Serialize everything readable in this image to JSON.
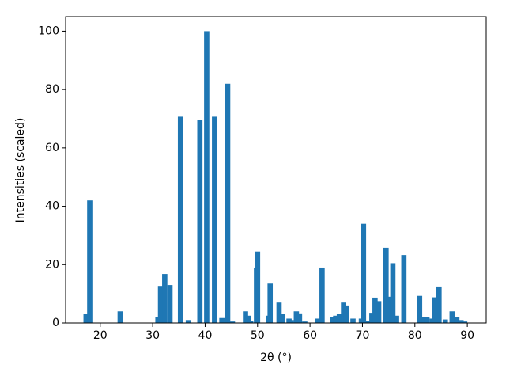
{
  "chart_data": {
    "type": "bar",
    "xlabel": "2θ (°)",
    "ylabel": "Intensities (scaled)",
    "color": "#1f77b4",
    "x": [
      17.3,
      18,
      23.8,
      31,
      31.5,
      32.3,
      33.3,
      35.3,
      36.8,
      39,
      40.3,
      41.8,
      43.2,
      44.3,
      45.2,
      47.7,
      48.2,
      48.7,
      49.8,
      50,
      52.1,
      52.4,
      54.1,
      54.7,
      56,
      56.4,
      57.4,
      58,
      59,
      61.5,
      62.3,
      64.3,
      64.9,
      65.6,
      66.4,
      66.9,
      68.2,
      69.8,
      70.2,
      71,
      71.8,
      72.4,
      73.1,
      74.5,
      75,
      75.8,
      76.5,
      77.9,
      80.9,
      81.8,
      82.3,
      83.3,
      83.8,
      84.6,
      85.8,
      87.1,
      88,
      88.8,
      89.5
    ],
    "values": [
      3,
      42,
      4,
      2,
      12.7,
      16.8,
      13,
      70.7,
      1,
      69.5,
      100,
      70.7,
      1.7,
      82,
      0.5,
      4,
      2.5,
      0.8,
      19,
      24.5,
      2.5,
      13.5,
      7,
      3,
      1.5,
      1,
      4,
      3.3,
      0.5,
      1.5,
      19,
      2,
      2.5,
      3,
      7,
      6,
      1.5,
      1.5,
      34,
      0.8,
      3.5,
      8.7,
      7.5,
      25.8,
      9,
      20.5,
      2.5,
      23.3,
      9.3,
      2,
      2,
      1.5,
      8.8,
      12.5,
      1.2,
      4,
      2,
      1,
      0.5
    ],
    "xlim": [
      13.4,
      93.6
    ],
    "ylim": [
      0,
      105
    ],
    "xticks": [
      20,
      30,
      40,
      50,
      60,
      70,
      80,
      90
    ],
    "yticks": [
      0,
      20,
      40,
      60,
      80,
      100
    ]
  }
}
